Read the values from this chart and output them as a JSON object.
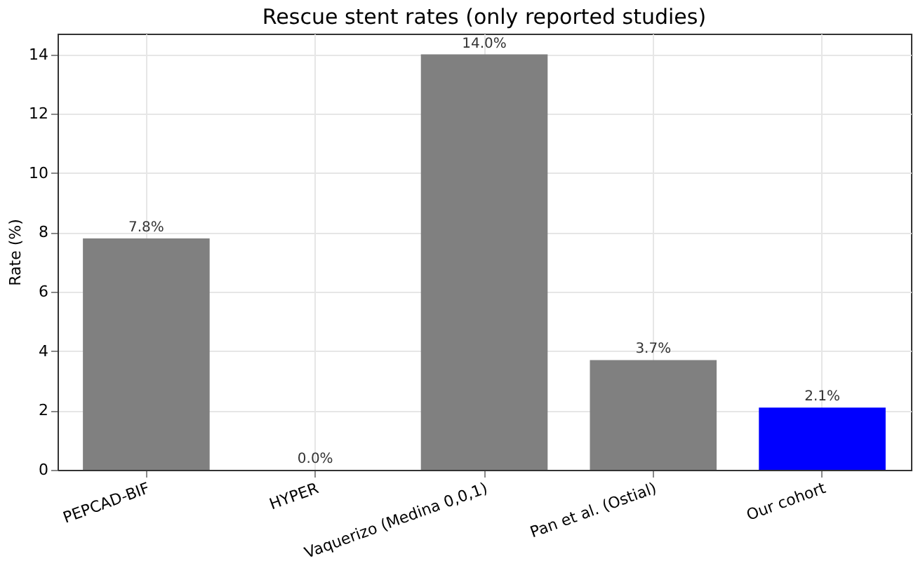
{
  "chart_data": {
    "type": "bar",
    "title": "Rescue stent rates (only reported studies)",
    "ylabel": "Rate (%)",
    "categories": [
      "PEPCAD-BIF",
      "HYPER",
      "Vaquerizo (Medina 0,0,1)",
      "Pan et al. (Ostial)",
      "Our cohort"
    ],
    "values": [
      7.8,
      0.0,
      14.0,
      3.7,
      2.1
    ],
    "colors": [
      "#808080",
      "#808080",
      "#808080",
      "#808080",
      "#0000ff"
    ],
    "value_labels": [
      "7.8%",
      "0.0%",
      "14.0%",
      "3.7%",
      "2.1%"
    ],
    "ylim": [
      0,
      14.7
    ],
    "yticks": [
      0,
      2,
      4,
      6,
      8,
      10,
      12,
      14
    ],
    "grid": true
  }
}
